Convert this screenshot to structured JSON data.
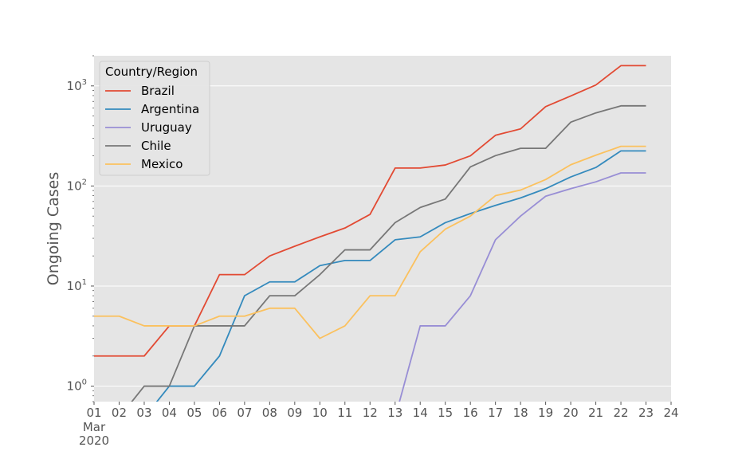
{
  "chart_data": {
    "type": "line",
    "ylabel": "Ongoing Cases",
    "yscale": "log",
    "ylim": [
      0.7,
      2000
    ],
    "grid": true,
    "x_start": "2020-03-01",
    "x_end": "2020-03-24",
    "x": [
      "2020-03-01",
      "2020-03-02",
      "2020-03-03",
      "2020-03-04",
      "2020-03-05",
      "2020-03-06",
      "2020-03-07",
      "2020-03-08",
      "2020-03-09",
      "2020-03-10",
      "2020-03-11",
      "2020-03-12",
      "2020-03-13",
      "2020-03-14",
      "2020-03-15",
      "2020-03-16",
      "2020-03-17",
      "2020-03-18",
      "2020-03-19",
      "2020-03-20",
      "2020-03-21",
      "2020-03-22",
      "2020-03-23"
    ],
    "x_tick_labels": [
      "01",
      "02",
      "03",
      "04",
      "05",
      "06",
      "07",
      "08",
      "09",
      "10",
      "11",
      "12",
      "13",
      "14",
      "15",
      "16",
      "17",
      "18",
      "19",
      "20",
      "21",
      "22",
      "23",
      "24"
    ],
    "x_sublabel_month": "Mar",
    "x_sublabel_year": "2020",
    "y_tick_labels": [
      {
        "base": "10",
        "exp": "0",
        "value": 1
      },
      {
        "base": "10",
        "exp": "1",
        "value": 10
      },
      {
        "base": "10",
        "exp": "2",
        "value": 100
      },
      {
        "base": "10",
        "exp": "3",
        "value": 1000
      }
    ],
    "legend": {
      "title": "Country/Region",
      "position": "top-left"
    },
    "series": [
      {
        "name": "Brazil",
        "color": "#E24A33",
        "values": [
          2,
          2,
          2,
          4,
          4,
          13,
          13,
          20,
          25,
          31,
          38,
          52,
          151,
          151,
          162,
          200,
          321,
          372,
          621,
          793,
          1021,
          1593,
          1593
        ]
      },
      {
        "name": "Argentina",
        "color": "#348ABD",
        "values": [
          0,
          0,
          0,
          1,
          1,
          2,
          8,
          11,
          11,
          16,
          18,
          18,
          29,
          31,
          43,
          53,
          64,
          76,
          94,
          123,
          153,
          224,
          224
        ]
      },
      {
        "name": "Uruguay",
        "color": "#988ED5",
        "values": [
          0,
          0,
          0,
          0,
          0,
          0,
          0,
          0,
          0,
          0,
          0,
          0,
          0,
          4,
          4,
          8,
          29,
          50,
          79,
          94,
          110,
          135,
          135
        ]
      },
      {
        "name": "Chile",
        "color": "#777777",
        "values": [
          0,
          0,
          1,
          1,
          4,
          4,
          4,
          8,
          8,
          13,
          23,
          23,
          43,
          61,
          74,
          155,
          201,
          238,
          238,
          434,
          537,
          632,
          632
        ]
      },
      {
        "name": "Mexico",
        "color": "#FBC15E",
        "values": [
          5,
          5,
          4,
          4,
          4,
          5,
          5,
          6,
          6,
          3,
          4,
          8,
          8,
          22,
          37,
          50,
          80,
          91,
          116,
          163,
          203,
          249,
          249
        ]
      }
    ]
  }
}
